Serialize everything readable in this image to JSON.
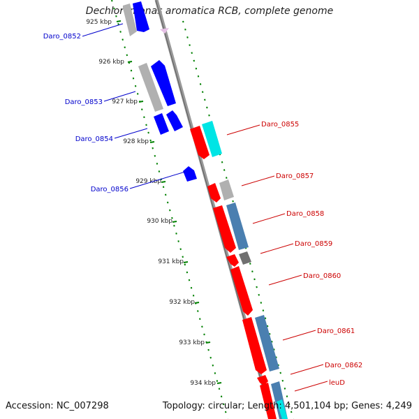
{
  "title": "Dechloromonas aromatica RCB, complete genome",
  "footer": {
    "accession": "Accession: NC_007298",
    "summary": "Topology: circular; Length: 4,501,104 bp; Genes: 4,249"
  },
  "colors": {
    "forward_gene": "#0000ff",
    "reverse_gene": "#ff0000",
    "forward_label": "#0000cc",
    "reverse_label": "#cc0000",
    "tick_dots": "#008000",
    "backbone": "#888888"
  },
  "scale": {
    "ticks": [
      "925 kbp",
      "926 kbp",
      "927 kbp",
      "928 kbp",
      "929 kbp",
      "930 kbp",
      "931 kbp",
      "932 kbp",
      "933 kbp",
      "934 kbp"
    ]
  },
  "forward_genes": [
    {
      "label": "Daro_0852"
    },
    {
      "label": "Daro_0853"
    },
    {
      "label": "Daro_0854"
    },
    {
      "label": "Daro_0856"
    }
  ],
  "reverse_genes": [
    {
      "label": "Daro_0855"
    },
    {
      "label": "Daro_0857"
    },
    {
      "label": "Daro_0858"
    },
    {
      "label": "Daro_0859"
    },
    {
      "label": "Daro_0860"
    },
    {
      "label": "Daro_0861"
    },
    {
      "label": "Daro_0862"
    },
    {
      "label": "leuD"
    }
  ]
}
